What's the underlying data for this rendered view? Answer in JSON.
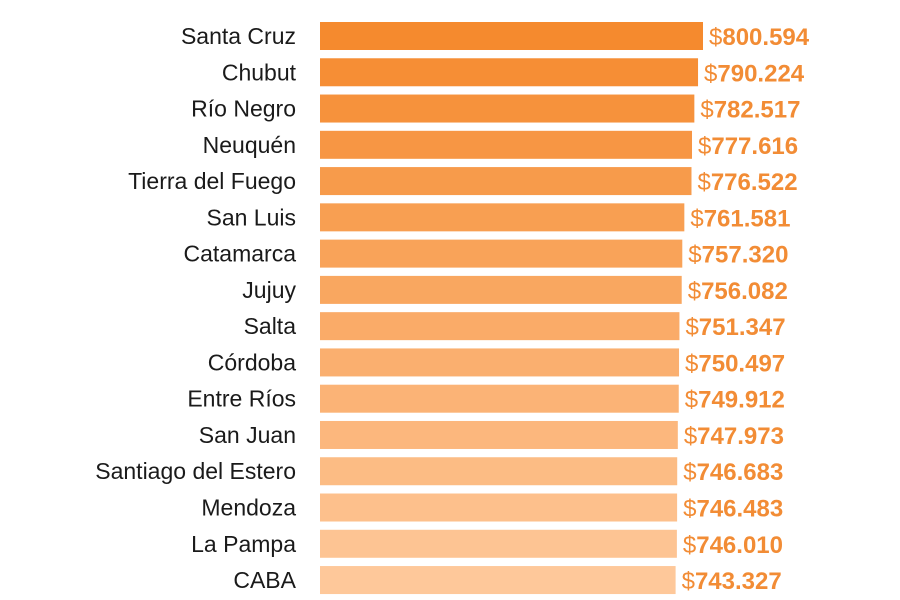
{
  "chart_data": {
    "type": "bar",
    "orientation": "horizontal",
    "title": "",
    "xlabel": "",
    "ylabel": "",
    "grid": false,
    "currency_prefix": "$",
    "categories": [
      "Santa Cruz",
      "Chubut",
      "Río Negro",
      "Neuquén",
      "Tierra del Fuego",
      "San Luis",
      "Catamarca",
      "Jujuy",
      "Salta",
      "Córdoba",
      "Entre Ríos",
      "San Juan",
      "Santiago del Estero",
      "Mendoza",
      "La Pampa",
      "CABA"
    ],
    "values": [
      800594,
      790224,
      782517,
      777616,
      776522,
      761581,
      757320,
      756082,
      751347,
      750497,
      749912,
      747973,
      746683,
      746483,
      746010,
      743327
    ],
    "value_labels": [
      "800.594",
      "790.224",
      "782.517",
      "777.616",
      "776.522",
      "761.581",
      "757.320",
      "756.082",
      "751.347",
      "750.497",
      "749.912",
      "747.973",
      "746.683",
      "746.483",
      "746.010",
      "743.327"
    ],
    "colors": {
      "bar_max": "#F58A2E",
      "bar_min": "#FEC89A",
      "label": "#F28C35"
    }
  }
}
